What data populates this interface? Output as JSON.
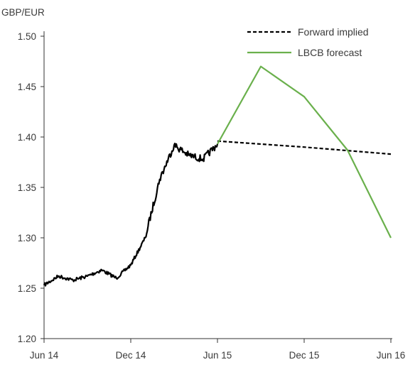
{
  "chart_data": {
    "type": "line",
    "title": "",
    "ylabel": "GBP/EUR",
    "xlabel": "",
    "ylim": [
      1.2,
      1.5
    ],
    "y_ticks": [
      "1.20",
      "1.25",
      "1.30",
      "1.35",
      "1.40",
      "1.45",
      "1.50"
    ],
    "x_ticks": [
      "Jun 14",
      "Dec 14",
      "Jun 15",
      "Dec 15",
      "Jun 16"
    ],
    "grid": false,
    "legend_position": "top-right",
    "series": [
      {
        "name": "",
        "style": "solid",
        "color": "#000000",
        "x": [
          "2014-06",
          "2014-07",
          "2014-08",
          "2014-09",
          "2014-10",
          "2014-11",
          "2014-12",
          "2015-01",
          "2015-02",
          "2015-03",
          "2015-04",
          "2015-05",
          "2015-06"
        ],
        "y": [
          1.253,
          1.262,
          1.258,
          1.262,
          1.268,
          1.26,
          1.273,
          1.3,
          1.358,
          1.392,
          1.382,
          1.378,
          1.393
        ]
      },
      {
        "name": "Forward implied",
        "style": "dashed",
        "color": "#000000",
        "x": [
          "2015-06",
          "2015-12",
          "2016-06"
        ],
        "y": [
          1.396,
          1.39,
          1.383
        ]
      },
      {
        "name": "LBCB forecast",
        "style": "solid",
        "color": "#6ab04c",
        "x": [
          "2015-06",
          "2015-09",
          "2015-12",
          "2016-03",
          "2016-06"
        ],
        "y": [
          1.393,
          1.47,
          1.44,
          1.387,
          1.3
        ]
      }
    ]
  }
}
